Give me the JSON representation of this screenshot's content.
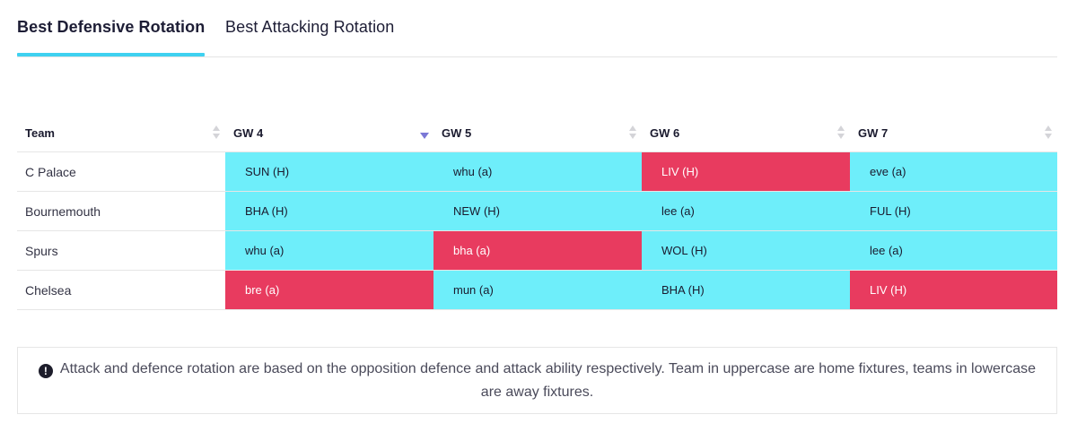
{
  "tabs": [
    {
      "label": "Best Defensive Rotation",
      "active": true
    },
    {
      "label": "Best Attacking Rotation",
      "active": false
    }
  ],
  "table": {
    "headers": [
      "Team",
      "GW 4",
      "GW 5",
      "GW 6",
      "GW 7"
    ],
    "sorted_column": "GW 4",
    "rows": [
      {
        "team": "C Palace",
        "fixtures": [
          {
            "label": "SUN (H)",
            "difficulty": "easy"
          },
          {
            "label": "whu (a)",
            "difficulty": "easy"
          },
          {
            "label": "LIV (H)",
            "difficulty": "hard"
          },
          {
            "label": "eve (a)",
            "difficulty": "easy"
          }
        ]
      },
      {
        "team": "Bournemouth",
        "fixtures": [
          {
            "label": "BHA (H)",
            "difficulty": "easy"
          },
          {
            "label": "NEW (H)",
            "difficulty": "easy"
          },
          {
            "label": "lee (a)",
            "difficulty": "easy"
          },
          {
            "label": "FUL (H)",
            "difficulty": "easy"
          }
        ]
      },
      {
        "team": "Spurs",
        "fixtures": [
          {
            "label": "whu (a)",
            "difficulty": "easy"
          },
          {
            "label": "bha (a)",
            "difficulty": "hard"
          },
          {
            "label": "WOL (H)",
            "difficulty": "easy"
          },
          {
            "label": "lee (a)",
            "difficulty": "easy"
          }
        ]
      },
      {
        "team": "Chelsea",
        "fixtures": [
          {
            "label": "bre (a)",
            "difficulty": "hard"
          },
          {
            "label": "mun (a)",
            "difficulty": "easy"
          },
          {
            "label": "BHA (H)",
            "difficulty": "easy"
          },
          {
            "label": "LIV (H)",
            "difficulty": "hard"
          }
        ]
      }
    ]
  },
  "note": {
    "icon": "info-icon",
    "text": "Attack and defence rotation are based on the opposition defence and attack ability respectively. Team in uppercase are home fixtures, teams in lowercase are away fixtures."
  },
  "colors": {
    "easy": "#6eeefa",
    "hard": "#e83b5f",
    "tab_underline": "#3fd1f0",
    "sort_active": "#7b78d6"
  }
}
